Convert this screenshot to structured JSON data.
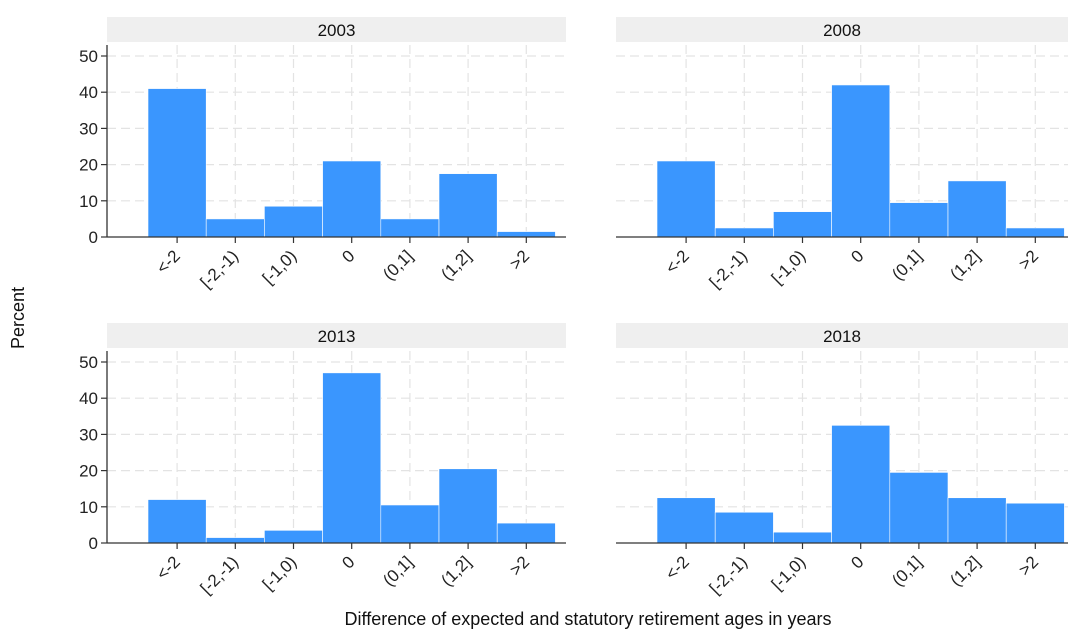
{
  "chart_data": {
    "type": "bar",
    "ylabel": "Percent",
    "xlabel": "Difference of expected and statutory retirement ages in years",
    "categories": [
      "<-2",
      "[-2,-1)",
      "[-1,0)",
      "0",
      "(0,1]",
      "(1,2]",
      ">2"
    ],
    "ylim": [
      0,
      50
    ],
    "yticks": [
      0,
      10,
      20,
      30,
      40,
      50
    ],
    "grid": true,
    "bar_color": "#3a96fe",
    "panels": [
      {
        "title": "2003",
        "values": [
          41,
          5,
          8.5,
          21,
          5,
          17.5,
          1.5
        ]
      },
      {
        "title": "2008",
        "values": [
          21,
          2.5,
          7,
          42,
          9.5,
          15.5,
          2.5
        ]
      },
      {
        "title": "2013",
        "values": [
          12,
          1.5,
          3.5,
          47,
          10.5,
          20.5,
          5.5
        ]
      },
      {
        "title": "2018",
        "values": [
          12.5,
          8.5,
          3,
          32.5,
          19.5,
          12.5,
          11
        ]
      }
    ]
  }
}
